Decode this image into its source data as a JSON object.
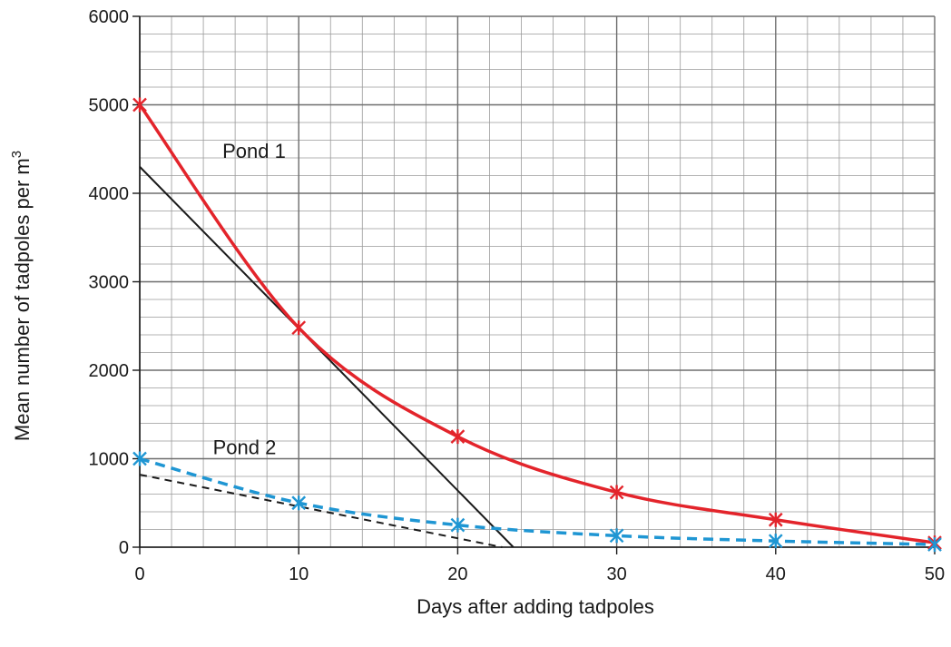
{
  "chart_data": {
    "type": "line",
    "xlabel": "Days after adding tadpoles",
    "ylabel": "Mean number of tadpoles per m",
    "ylabel_superscript": "3",
    "xlim": [
      0,
      50
    ],
    "ylim": [
      0,
      6000
    ],
    "x_ticks": [
      "0",
      "10",
      "20",
      "30",
      "40",
      "50"
    ],
    "y_ticks": [
      "0",
      "1000",
      "2000",
      "3000",
      "4000",
      "5000",
      "6000"
    ],
    "grid": true,
    "grid_minor_x": 2,
    "grid_minor_y": 200,
    "series": [
      {
        "name": "Pond 1",
        "color": "#e3242b",
        "line_style": "solid",
        "marker": "asterisk",
        "x": [
          0,
          10,
          20,
          30,
          40,
          50
        ],
        "y": [
          5000,
          2480,
          1250,
          620,
          310,
          50
        ]
      },
      {
        "name": "Pond 2",
        "color": "#1f96d3",
        "line_style": "dashed",
        "marker": "asterisk",
        "x": [
          0,
          10,
          20,
          30,
          40,
          50
        ],
        "y": [
          1000,
          500,
          250,
          130,
          70,
          30
        ]
      }
    ],
    "tangent_lines": [
      {
        "color": "#1a1a1a",
        "line_style": "solid",
        "x": [
          0,
          23.5
        ],
        "y": [
          4300,
          0
        ]
      },
      {
        "color": "#1a1a1a",
        "line_style": "dashed",
        "x": [
          0,
          22.8
        ],
        "y": [
          820,
          0
        ]
      }
    ],
    "annotations": [
      {
        "text": "Pond 1",
        "x": 5.2,
        "y": 4400
      },
      {
        "text": "Pond 2",
        "x": 4.6,
        "y": 1050
      }
    ]
  }
}
